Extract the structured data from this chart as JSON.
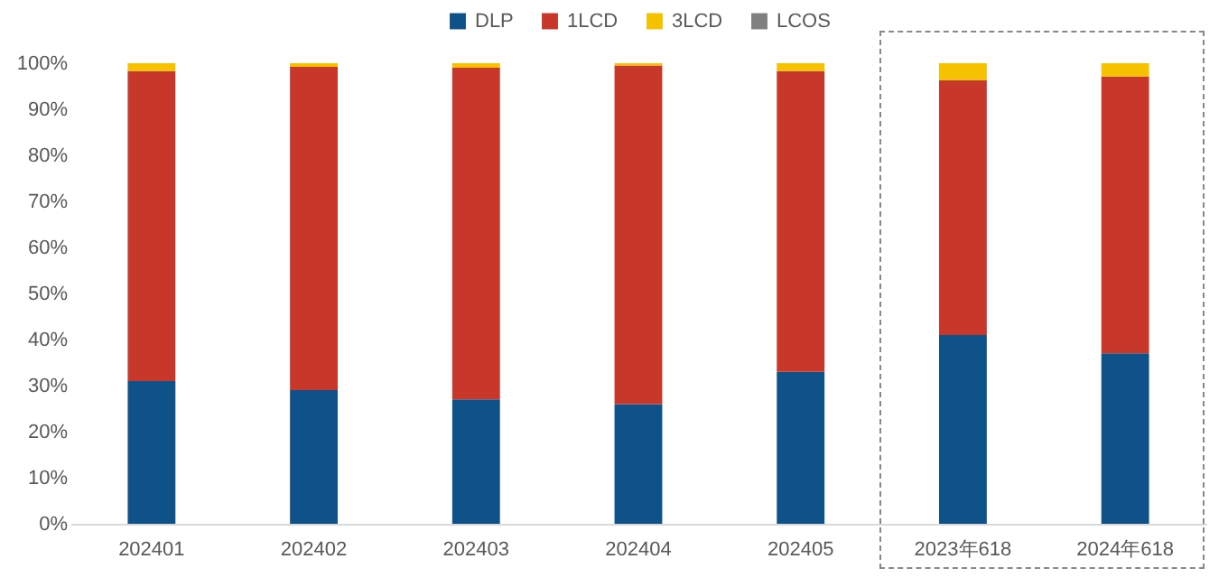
{
  "chart_data": {
    "type": "bar",
    "stacked": true,
    "categories": [
      "202401",
      "202402",
      "202403",
      "202404",
      "202405",
      "2023年618",
      "2024年618"
    ],
    "series": [
      {
        "name": "DLP",
        "color": "#0f5189",
        "values": [
          31,
          29,
          27,
          26,
          33,
          41,
          37
        ]
      },
      {
        "name": "1LCD",
        "color": "#c8382a",
        "values": [
          67.3,
          70.2,
          72,
          73.5,
          65.3,
          55.3,
          60.1
        ]
      },
      {
        "name": "3LCD",
        "color": "#f5c100",
        "values": [
          1.7,
          0.8,
          1,
          0.5,
          1.7,
          3.7,
          2.9
        ]
      },
      {
        "name": "LCOS",
        "color": "#808080",
        "values": [
          0,
          0,
          0,
          0,
          0,
          0,
          0
        ]
      }
    ],
    "ylim": [
      0,
      100
    ],
    "yticks": [
      {
        "value": 0,
        "label": "0%"
      },
      {
        "value": 10,
        "label": "10%"
      },
      {
        "value": 20,
        "label": "20%"
      },
      {
        "value": 30,
        "label": "30%"
      },
      {
        "value": 40,
        "label": "40%"
      },
      {
        "value": 50,
        "label": "50%"
      },
      {
        "value": 60,
        "label": "60%"
      },
      {
        "value": 70,
        "label": "70%"
      },
      {
        "value": 80,
        "label": "80%"
      },
      {
        "value": 90,
        "label": "90%"
      },
      {
        "value": 100,
        "label": "100%"
      }
    ],
    "grid": false,
    "legend": "top"
  }
}
